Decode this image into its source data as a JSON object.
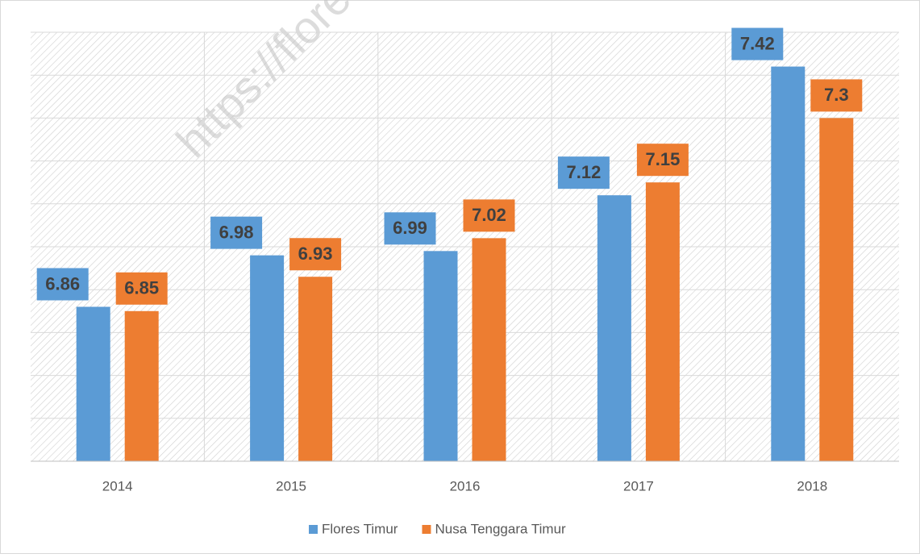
{
  "chart_data": {
    "type": "bar",
    "watermark": "https://flore",
    "categories": [
      "2014",
      "2015",
      "2016",
      "2017",
      "2018"
    ],
    "series": [
      {
        "name": "Flores Timur",
        "color": "#5b9bd5",
        "values": [
          6.86,
          6.98,
          6.99,
          7.12,
          7.42
        ]
      },
      {
        "name": "Nusa Tenggara Timur",
        "color": "#ed7d31",
        "values": [
          6.85,
          6.93,
          7.02,
          7.15,
          7.3
        ]
      }
    ],
    "ylim": [
      6.5,
      7.5
    ],
    "yticks": [
      6.5,
      6.6,
      6.7,
      6.8,
      6.9,
      7.0,
      7.1,
      7.2,
      7.3,
      7.4,
      7.5
    ],
    "grid": true,
    "legend": "bottom"
  }
}
